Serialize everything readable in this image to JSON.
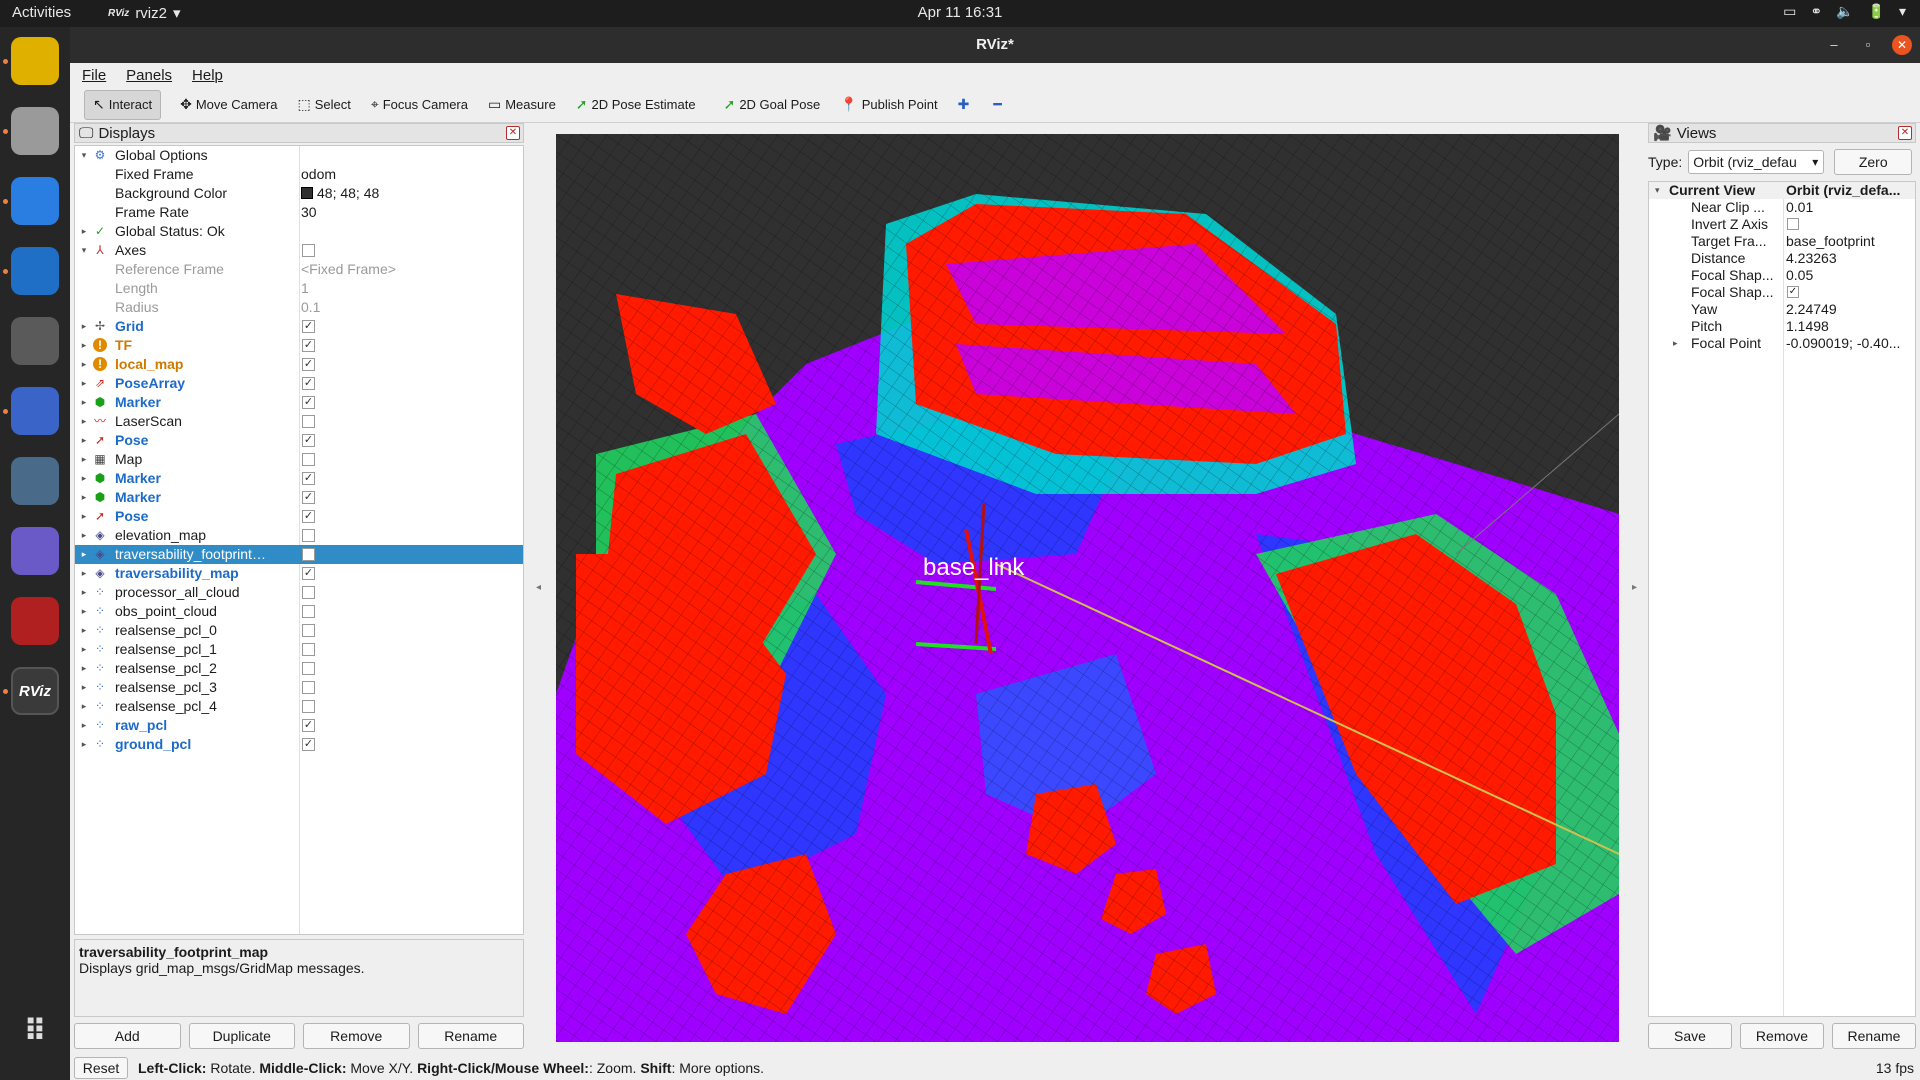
{
  "topbar": {
    "activities": "Activities",
    "app_name": "rviz2",
    "app_logo": "RViz",
    "clock": "Apr 11  16:31",
    "tray": [
      "▭",
      "⚭",
      "🔈",
      "🔋",
      "▾"
    ]
  },
  "dock": {
    "icons": [
      {
        "name": "chrome-icon",
        "label": "",
        "color": "#e0b000"
      },
      {
        "name": "files-icon",
        "label": "",
        "color": "#9a9a9a"
      },
      {
        "name": "baidu-netdisk-icon",
        "label": "",
        "color": "#2a7de1"
      },
      {
        "name": "vscode-icon",
        "label": "",
        "color": "#1f6fc6"
      },
      {
        "name": "gimp-icon",
        "label": "",
        "color": "#5a5a5a"
      },
      {
        "name": "screenshot-icon",
        "label": "",
        "color": "#3a64c8"
      },
      {
        "name": "video-recorder-icon",
        "label": "",
        "color": "#4a6a8a"
      },
      {
        "name": "network-icon",
        "label": "",
        "color": "#6a5ac8"
      },
      {
        "name": "terminal-icon",
        "label": "",
        "color": "#b02020"
      },
      {
        "name": "rviz-icon",
        "label": "RViz",
        "color": "#3a3a3a"
      },
      {
        "name": "show-apps-icon",
        "label": "⠿",
        "color": "#262626"
      }
    ]
  },
  "window": {
    "title": "RViz*",
    "controls": {
      "minimize": "–",
      "maximize": "▫",
      "close": "✕"
    }
  },
  "menu": {
    "file": "File",
    "panels": "Panels",
    "help": "Help"
  },
  "toolbar": {
    "tools": [
      {
        "name": "interact-tool",
        "label": "Interact",
        "icon": "↖",
        "active": true
      },
      {
        "name": "move-camera-tool",
        "label": "Move Camera",
        "icon": "✥",
        "active": false
      },
      {
        "name": "select-tool",
        "label": "Select",
        "icon": "⬚",
        "active": false
      },
      {
        "name": "focus-camera-tool",
        "label": "Focus Camera",
        "icon": "⌖",
        "active": false
      },
      {
        "name": "measure-tool",
        "label": "Measure",
        "icon": "▭",
        "active": false
      },
      {
        "name": "pose-estimate-tool",
        "label": "2D Pose Estimate",
        "icon": "➚",
        "active": false
      },
      {
        "name": "goal-pose-tool",
        "label": "2D Goal Pose",
        "icon": "➚",
        "active": false
      },
      {
        "name": "publish-point-tool",
        "label": "Publish Point",
        "icon": "📍",
        "active": false
      },
      {
        "name": "add-tool",
        "label": "",
        "icon": "✚",
        "active": false
      },
      {
        "name": "remove-tool",
        "label": "",
        "icon": "━",
        "active": false
      }
    ]
  },
  "displays": {
    "title": "Displays",
    "rows": [
      {
        "depth": 0,
        "arrow": "▾",
        "icon": "⚙",
        "icon_color": "#3a6fd0",
        "name": "Global Options",
        "value": ""
      },
      {
        "depth": 1,
        "arrow": "",
        "icon": "",
        "name": "Fixed Frame",
        "value": "odom"
      },
      {
        "depth": 1,
        "arrow": "",
        "icon": "",
        "name": "Background Color",
        "value": "48; 48; 48",
        "swatch": true
      },
      {
        "depth": 1,
        "arrow": "",
        "icon": "",
        "name": "Frame Rate",
        "value": "30"
      },
      {
        "depth": 0,
        "arrow": "▸",
        "icon": "✓",
        "icon_color": "#2a9a2a",
        "name": "Global Status: Ok",
        "value": ""
      },
      {
        "depth": 0,
        "arrow": "▾",
        "icon": "⅄",
        "icon_color": "#c03030",
        "name": "Axes",
        "cb": ""
      },
      {
        "depth": 1,
        "arrow": "",
        "icon": "",
        "name": "Reference Frame",
        "value": "<Fixed Frame>",
        "style": "dim"
      },
      {
        "depth": 1,
        "arrow": "",
        "icon": "",
        "name": "Length",
        "value": "1",
        "style": "dim"
      },
      {
        "depth": 1,
        "arrow": "",
        "icon": "",
        "name": "Radius",
        "value": "0.1",
        "style": "dim"
      },
      {
        "depth": 0,
        "arrow": "▸",
        "icon": "✢",
        "icon_color": "#555",
        "name": "Grid",
        "cb": "✓",
        "style": "blue"
      },
      {
        "depth": 0,
        "arrow": "▸",
        "icon": "!",
        "icon_color": "#e08a00",
        "name": "TF",
        "cb": "✓",
        "style": "orange"
      },
      {
        "depth": 0,
        "arrow": "▸",
        "icon": "!",
        "icon_color": "#e08a00",
        "name": "local_map",
        "cb": "✓",
        "style": "orange"
      },
      {
        "depth": 0,
        "arrow": "▸",
        "icon": "⇗",
        "icon_color": "#d02020",
        "name": "PoseArray",
        "cb": "✓",
        "style": "blue"
      },
      {
        "depth": 0,
        "arrow": "▸",
        "icon": "⬢",
        "icon_color": "#18a018",
        "name": "Marker",
        "cb": "✓",
        "style": "blue"
      },
      {
        "depth": 0,
        "arrow": "▸",
        "icon": "〰",
        "icon_color": "#d02020",
        "name": "LaserScan",
        "cb": ""
      },
      {
        "depth": 0,
        "arrow": "▸",
        "icon": "➚",
        "icon_color": "#d02020",
        "name": "Pose",
        "cb": "✓",
        "style": "blue"
      },
      {
        "depth": 0,
        "arrow": "▸",
        "icon": "▦",
        "icon_color": "#444",
        "name": "Map",
        "cb": ""
      },
      {
        "depth": 0,
        "arrow": "▸",
        "icon": "⬢",
        "icon_color": "#18a018",
        "name": "Marker",
        "cb": "✓",
        "style": "blue"
      },
      {
        "depth": 0,
        "arrow": "▸",
        "icon": "⬢",
        "icon_color": "#18a018",
        "name": "Marker",
        "cb": "✓",
        "style": "blue"
      },
      {
        "depth": 0,
        "arrow": "▸",
        "icon": "➚",
        "icon_color": "#d02020",
        "name": "Pose",
        "cb": "✓",
        "style": "blue"
      },
      {
        "depth": 0,
        "arrow": "▸",
        "icon": "◈",
        "icon_color": "#4a4a8a",
        "name": "elevation_map",
        "cb": ""
      },
      {
        "depth": 0,
        "arrow": "▸",
        "icon": "◈",
        "icon_color": "#4a4a8a",
        "name": "traversability_footprint…",
        "cb": "",
        "style": "sel"
      },
      {
        "depth": 0,
        "arrow": "▸",
        "icon": "◈",
        "icon_color": "#4a4a8a",
        "name": "traversability_map",
        "cb": "✓",
        "style": "blue"
      },
      {
        "depth": 0,
        "arrow": "▸",
        "icon": "⁘",
        "icon_color": "#3a6fd0",
        "name": "processor_all_cloud",
        "cb": ""
      },
      {
        "depth": 0,
        "arrow": "▸",
        "icon": "⁘",
        "icon_color": "#3a6fd0",
        "name": "obs_point_cloud",
        "cb": ""
      },
      {
        "depth": 0,
        "arrow": "▸",
        "icon": "⁘",
        "icon_color": "#3a6fd0",
        "name": "realsense_pcl_0",
        "cb": ""
      },
      {
        "depth": 0,
        "arrow": "▸",
        "icon": "⁘",
        "icon_color": "#3a6fd0",
        "name": "realsense_pcl_1",
        "cb": ""
      },
      {
        "depth": 0,
        "arrow": "▸",
        "icon": "⁘",
        "icon_color": "#3a6fd0",
        "name": "realsense_pcl_2",
        "cb": ""
      },
      {
        "depth": 0,
        "arrow": "▸",
        "icon": "⁘",
        "icon_color": "#3a6fd0",
        "name": "realsense_pcl_3",
        "cb": ""
      },
      {
        "depth": 0,
        "arrow": "▸",
        "icon": "⁘",
        "icon_color": "#3a6fd0",
        "name": "realsense_pcl_4",
        "cb": ""
      },
      {
        "depth": 0,
        "arrow": "▸",
        "icon": "⁘",
        "icon_color": "#3a6fd0",
        "name": "raw_pcl",
        "cb": "✓",
        "style": "blue"
      },
      {
        "depth": 0,
        "arrow": "▸",
        "icon": "⁘",
        "icon_color": "#3a6fd0",
        "name": "ground_pcl",
        "cb": "✓",
        "style": "blue"
      }
    ],
    "description_title": "traversability_footprint_map",
    "description_text": "Displays grid_map_msgs/GridMap messages.",
    "buttons": {
      "add": "Add",
      "duplicate": "Duplicate",
      "remove": "Remove",
      "rename": "Rename"
    }
  },
  "viewport": {
    "frame_label": "base_link",
    "colors": {
      "low": "#a000ff",
      "mid": "#0060ff",
      "high": "#ff1a00",
      "background": "#303030"
    }
  },
  "views": {
    "title": "Views",
    "type_label": "Type:",
    "type_value": "Orbit (rviz_defau",
    "zero": "Zero",
    "header": {
      "name": "Current View",
      "value": "Orbit (rviz_defa..."
    },
    "rows": [
      {
        "name": "Near Clip ...",
        "value": "0.01"
      },
      {
        "name": "Invert Z Axis",
        "cb": ""
      },
      {
        "name": "Target Fra...",
        "value": "base_footprint"
      },
      {
        "name": "Distance",
        "value": "4.23263"
      },
      {
        "name": "Focal Shap...",
        "value": "0.05"
      },
      {
        "name": "Focal Shap...",
        "cb": "✓"
      },
      {
        "name": "Yaw",
        "value": "2.24749"
      },
      {
        "name": "Pitch",
        "value": "1.1498"
      },
      {
        "name": "Focal Point",
        "value": "-0.090019; -0.40...",
        "arrow": "▸"
      }
    ],
    "buttons": {
      "save": "Save",
      "remove": "Remove",
      "rename": "Rename"
    }
  },
  "status": {
    "reset": "Reset",
    "left_click": "Left-Click:",
    "left_text": "Rotate.",
    "middle_click": "Middle-Click:",
    "middle_text": "Move X/Y.",
    "right_click": "Right-Click/Mouse Wheel:",
    "right_text": ": Zoom.",
    "shift": "Shift",
    "shift_text": ": More options.",
    "fps": "13 fps"
  }
}
